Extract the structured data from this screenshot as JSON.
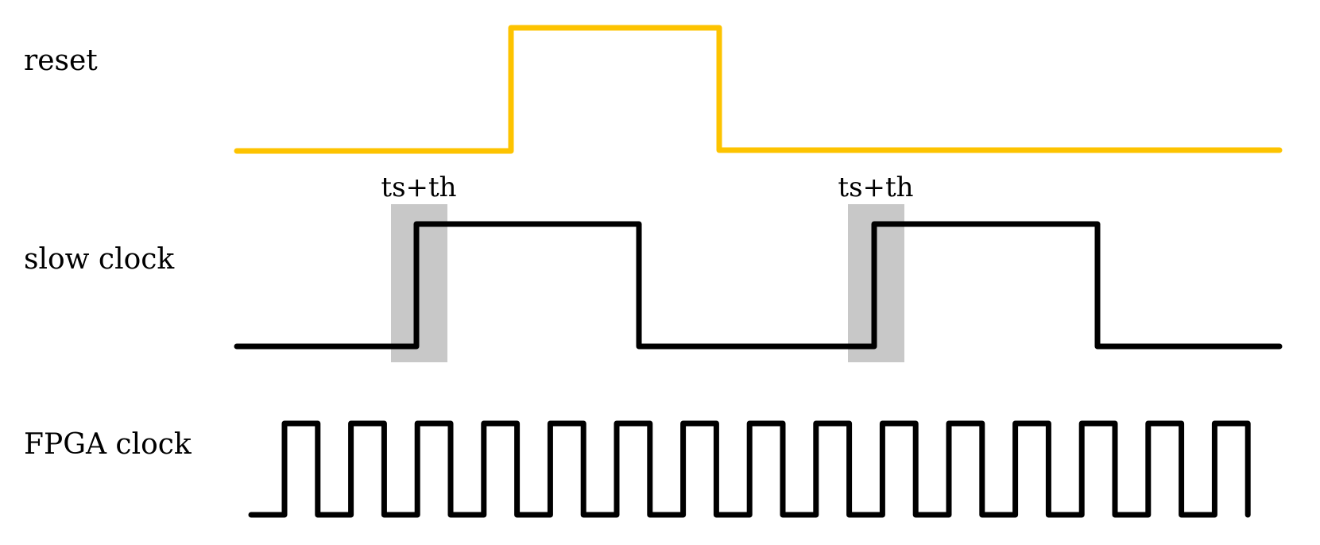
{
  "signals": [
    {
      "id": "reset",
      "label": "reset",
      "color": "#FDC300"
    },
    {
      "id": "slow_clock",
      "label": "slow clock",
      "color": "#000000"
    },
    {
      "id": "fpga_clock",
      "label": "FPGA clock",
      "color": "#000000"
    }
  ],
  "setup_hold_windows": [
    {
      "label": "ts+th",
      "color": "#C8C8C8"
    },
    {
      "label": "ts+th",
      "color": "#C8C8C8"
    }
  ],
  "fpga_clock_pulses": 15
}
